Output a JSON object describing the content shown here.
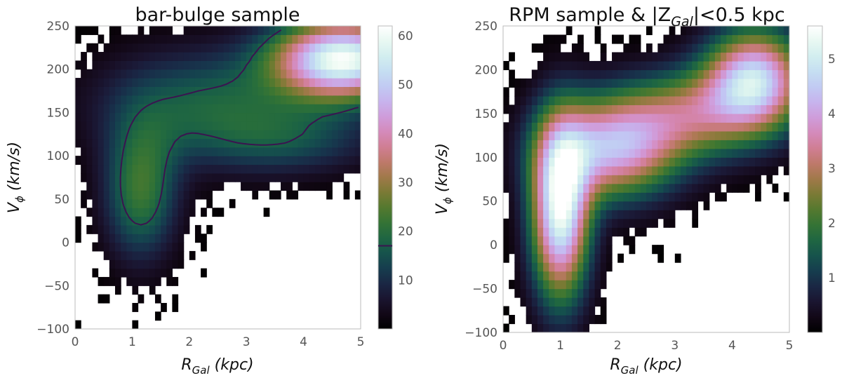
{
  "chart_data": [
    {
      "type": "heatmap",
      "title": "bar-bulge sample",
      "xlabel": "R",
      "xlabel_sub": "Gal",
      "xlabel_unit": " (kpc)",
      "ylabel": "V",
      "ylabel_sub": "ϕ",
      "ylabel_unit": " (km/s)",
      "xlim": [
        0,
        5
      ],
      "ylim": [
        -100,
        250
      ],
      "xticks": [
        0,
        1,
        2,
        3,
        4,
        5
      ],
      "yticks": [
        -100,
        -50,
        0,
        50,
        100,
        150,
        200,
        250
      ],
      "xtick_labels": [
        "0",
        "1",
        "2",
        "3",
        "4",
        "5"
      ],
      "ytick_labels": [
        "−100",
        "−50",
        "0",
        "50",
        "100",
        "150",
        "200",
        "250"
      ],
      "colorbar": {
        "colormap": "cubehelix",
        "range": [
          0,
          62
        ],
        "ticks": [
          10,
          20,
          30,
          40,
          50,
          60
        ],
        "tick_labels": [
          "10",
          "20",
          "30",
          "40",
          "50",
          "60"
        ],
        "contour_marker": 17
      },
      "grid": {
        "nx": 50,
        "ny": 35
      },
      "contour_level": 17,
      "components": [
        {
          "x": 4.7,
          "y": 212,
          "sx": 0.85,
          "sy": 32,
          "amp": 60
        },
        {
          "x": 1.15,
          "y": 60,
          "sx": 0.45,
          "sy": 55,
          "amp": 22
        },
        {
          "x": 2.3,
          "y": 160,
          "sx": 1.3,
          "sy": 45,
          "amp": 17
        },
        {
          "x": 3.8,
          "y": 118,
          "sx": 1.1,
          "sy": 28,
          "amp": 11
        }
      ]
    },
    {
      "type": "heatmap",
      "title_main": "RPM sample & |Z",
      "title_sub": "Gal",
      "title_tail": "|<0.5 kpc",
      "xlabel": "R",
      "xlabel_sub": "Gal",
      "xlabel_unit": " (kpc)",
      "ylabel": "V",
      "ylabel_sub": "ϕ",
      "ylabel_unit": " (km/s)",
      "xlim": [
        0,
        5
      ],
      "ylim": [
        -100,
        250
      ],
      "xticks": [
        0,
        1,
        2,
        3,
        4,
        5
      ],
      "yticks": [
        -100,
        -50,
        0,
        50,
        100,
        150,
        200,
        250
      ],
      "xtick_labels": [
        "0",
        "1",
        "2",
        "3",
        "4",
        "5"
      ],
      "ytick_labels": [
        "−100",
        "−50",
        "0",
        "50",
        "100",
        "150",
        "200",
        "250"
      ],
      "colorbar": {
        "colormap": "cubehelix",
        "range": [
          0,
          5.6
        ],
        "ticks": [
          1,
          2,
          3,
          4,
          5
        ],
        "tick_labels": [
          "1",
          "2",
          "3",
          "4",
          "5"
        ]
      },
      "grid": {
        "nx": 50,
        "ny": 35
      },
      "components": [
        {
          "x": 1.0,
          "y": 40,
          "sx": 0.35,
          "sy": 70,
          "amp": 5.3
        },
        {
          "x": 1.9,
          "y": 110,
          "sx": 0.8,
          "sy": 40,
          "amp": 4.0
        },
        {
          "x": 4.4,
          "y": 190,
          "sx": 0.6,
          "sy": 40,
          "amp": 4.5
        },
        {
          "x": 3.3,
          "y": 150,
          "sx": 0.9,
          "sy": 35,
          "amp": 2.5
        }
      ]
    }
  ]
}
